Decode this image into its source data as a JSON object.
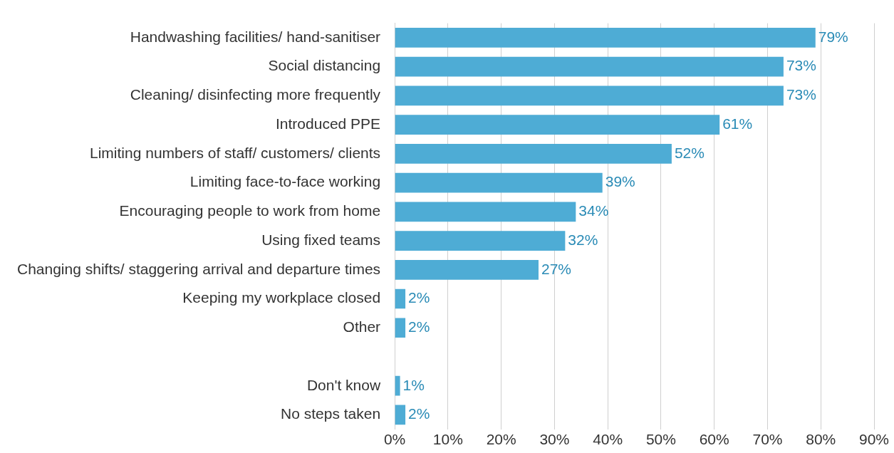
{
  "chart_data": {
    "type": "bar",
    "orientation": "horizontal",
    "categories": [
      "Handwashing facilities/ hand-sanitiser",
      "Social distancing",
      "Cleaning/ disinfecting more frequently",
      "Introduced PPE",
      "Limiting numbers of staff/ customers/ clients",
      "Limiting face-to-face working",
      "Encouraging people to work from home",
      "Using fixed teams",
      "Changing shifts/ staggering arrival and departure times",
      "Keeping my workplace closed",
      "Other",
      null,
      "Don't know",
      "No steps taken"
    ],
    "series": [
      {
        "color": "#4eacd5",
        "values": [
          79,
          73,
          73,
          61,
          52,
          39,
          34,
          32,
          27,
          2,
          2,
          null,
          1,
          2
        ]
      }
    ],
    "value_labels": [
      "79%",
      "73%",
      "73%",
      "61%",
      "52%",
      "39%",
      "34%",
      "32%",
      "27%",
      "2%",
      "2%",
      null,
      "1%",
      "2%"
    ],
    "xlim": [
      0,
      90
    ],
    "xticks": [
      {
        "value": 0,
        "label": "0%"
      },
      {
        "value": 10,
        "label": "10%"
      },
      {
        "value": 20,
        "label": "20%"
      },
      {
        "value": 30,
        "label": "30%"
      },
      {
        "value": 40,
        "label": "40%"
      },
      {
        "value": 50,
        "label": "50%"
      },
      {
        "value": 60,
        "label": "60%"
      },
      {
        "value": 70,
        "label": "70%"
      },
      {
        "value": 80,
        "label": "80%"
      },
      {
        "value": 90,
        "label": "90%"
      }
    ],
    "grid": "x",
    "legend": false
  }
}
